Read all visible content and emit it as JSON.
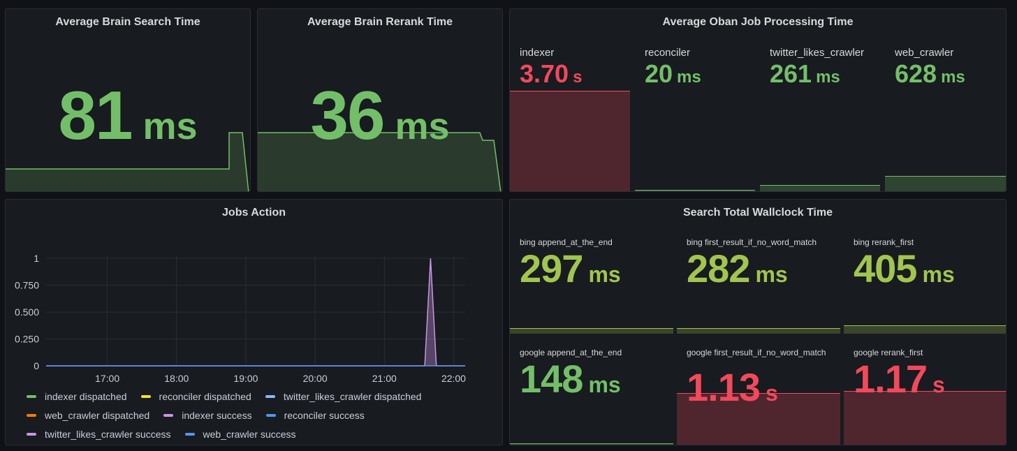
{
  "colors": {
    "green": "#73bf69",
    "lime": "#a1c54f",
    "red": "#f2495c",
    "panel_bg": "#181b1f",
    "page_bg": "#111217"
  },
  "brain_search": {
    "title": "Average Brain Search Time",
    "value": "81",
    "unit": "ms",
    "color": "green"
  },
  "brain_rerank": {
    "title": "Average Brain Rerank Time",
    "value": "36",
    "unit": "ms",
    "color": "green"
  },
  "oban": {
    "title": "Average Oban Job Processing Time",
    "items": [
      {
        "label": "indexer",
        "value": "3.70",
        "unit": "s",
        "color": "red",
        "level": 0.66
      },
      {
        "label": "reconciler",
        "value": "20",
        "unit": "ms",
        "color": "green",
        "level": 0.005
      },
      {
        "label": "twitter_likes_crawler",
        "value": "261",
        "unit": "ms",
        "color": "green",
        "level": 0.04
      },
      {
        "label": "web_crawler",
        "value": "628",
        "unit": "ms",
        "color": "green",
        "level": 0.1
      }
    ]
  },
  "jobs_action": {
    "title": "Jobs Action",
    "legend": [
      {
        "name": "indexer dispatched",
        "color": "#73bf69"
      },
      {
        "name": "reconciler dispatched",
        "color": "#fade2a"
      },
      {
        "name": "twitter_likes_crawler dispatched",
        "color": "#8ab8ff"
      },
      {
        "name": "web_crawler dispatched",
        "color": "#ff780a"
      },
      {
        "name": "indexer success",
        "color": "#ca95e5"
      },
      {
        "name": "reconciler success",
        "color": "#5794f2"
      },
      {
        "name": "twitter_likes_crawler success",
        "color": "#ca95e5"
      },
      {
        "name": "web_crawler success",
        "color": "#5794f2"
      }
    ]
  },
  "chart_data": {
    "type": "area",
    "title": "Jobs Action",
    "x": [
      "17:00",
      "18:00",
      "19:00",
      "20:00",
      "21:00",
      "22:00"
    ],
    "xlim": [
      "16:07",
      "22:10"
    ],
    "ylim": [
      0,
      1
    ],
    "yticks": [
      "0",
      "0.250",
      "0.500",
      "0.750",
      "1"
    ],
    "grid": true,
    "legend_position": "bottom",
    "series": [
      {
        "name": "twitter_likes_crawler success",
        "points": [
          [
            "16:07",
            0
          ],
          [
            "21:35",
            0
          ],
          [
            "21:40",
            1
          ],
          [
            "21:45",
            0
          ],
          [
            "22:10",
            0
          ]
        ]
      },
      {
        "name": "web_crawler success",
        "points": [
          [
            "16:07",
            0
          ],
          [
            "22:10",
            0
          ]
        ]
      }
    ]
  },
  "wallclock": {
    "title": "Search Total Wallclock Time",
    "items": [
      {
        "label": "bing append_at_the_end",
        "value": "297",
        "unit": "ms",
        "color": "lime",
        "level": 0.05
      },
      {
        "label": "bing first_result_if_no_word_match",
        "value": "282",
        "unit": "ms",
        "color": "lime",
        "level": 0.045
      },
      {
        "label": "bing rerank_first",
        "value": "405",
        "unit": "ms",
        "color": "lime",
        "level": 0.075
      },
      {
        "label": "google append_at_the_end",
        "value": "148",
        "unit": "ms",
        "color": "green",
        "level": 0.01
      },
      {
        "label": "google first_result_if_no_word_match",
        "value": "1.13",
        "unit": "s",
        "color": "red",
        "level": 0.49
      },
      {
        "label": "google rerank_first",
        "value": "1.17",
        "unit": "s",
        "color": "red",
        "level": 0.51
      }
    ]
  }
}
